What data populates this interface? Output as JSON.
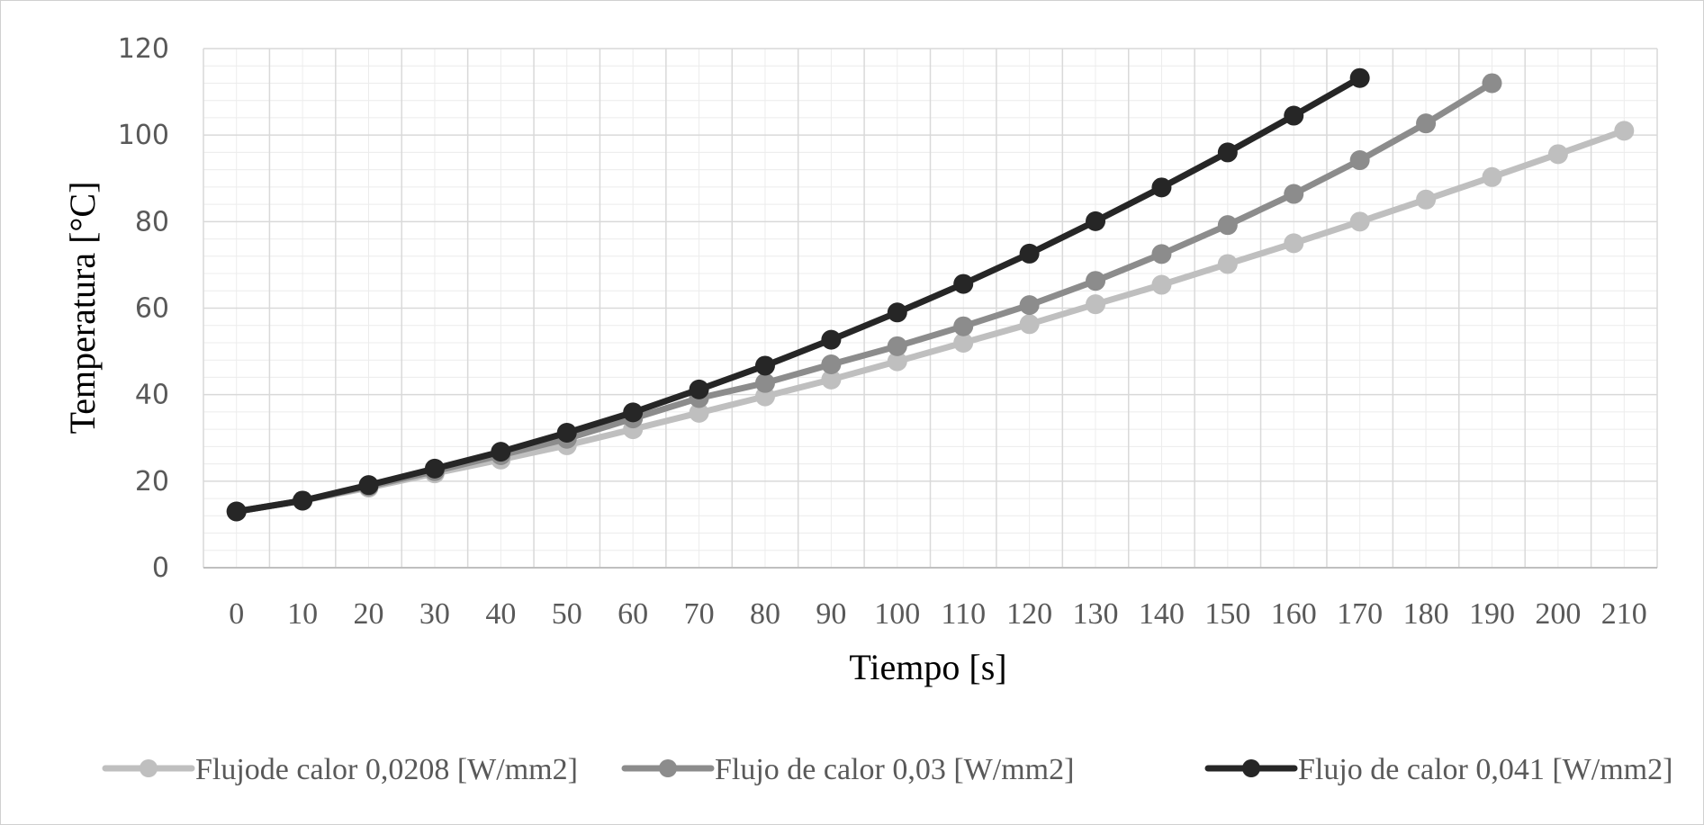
{
  "chart_data": {
    "type": "line",
    "title": "",
    "xlabel": "Tiempo [s]",
    "ylabel": "Temperatura [°C]",
    "categories": [
      0,
      10,
      20,
      30,
      40,
      50,
      60,
      70,
      80,
      90,
      100,
      110,
      120,
      130,
      140,
      150,
      160,
      170,
      180,
      190,
      200,
      210
    ],
    "ylim": [
      0,
      120
    ],
    "yticks": [
      0,
      20,
      40,
      60,
      80,
      100,
      120
    ],
    "grid": true,
    "minor_grid": true,
    "legend_position": "bottom",
    "series": [
      {
        "name": "Flujode calor 0,0208 [W/mm2]",
        "color": "#bfbfbf",
        "x": [
          0,
          10,
          20,
          30,
          40,
          50,
          60,
          70,
          80,
          90,
          100,
          110,
          120,
          130,
          140,
          150,
          160,
          170,
          180,
          190,
          200,
          210
        ],
        "values": [
          13,
          15.5,
          18.5,
          21.8,
          25,
          28.3,
          32,
          35.8,
          39.6,
          43.5,
          47.7,
          52,
          56.3,
          60.9,
          65.4,
          70.2,
          75,
          80,
          85.1,
          90.3,
          95.6,
          101
        ]
      },
      {
        "name": "Flujo de calor 0,03 [W/mm2]",
        "color": "#8c8c8c",
        "x": [
          0,
          10,
          20,
          30,
          40,
          50,
          60,
          70,
          80,
          90,
          100,
          110,
          120,
          130,
          140,
          150,
          160,
          170,
          180,
          190
        ],
        "values": [
          13,
          15.5,
          18.8,
          22.3,
          26,
          29.8,
          34.5,
          39.2,
          42.7,
          47,
          51.2,
          55.8,
          60.7,
          66.3,
          72.5,
          79.2,
          86.4,
          94.2,
          102.7,
          112
        ]
      },
      {
        "name": "Flujo de calor 0,041 [W/mm2]",
        "color": "#262626",
        "x": [
          0,
          10,
          20,
          30,
          40,
          50,
          60,
          70,
          80,
          90,
          100,
          110,
          120,
          130,
          140,
          150,
          160,
          170
        ],
        "values": [
          13,
          15.5,
          19.1,
          22.9,
          26.8,
          31.2,
          35.9,
          41.2,
          46.7,
          52.7,
          59,
          65.6,
          72.6,
          80.1,
          87.9,
          96,
          104.5,
          113.2
        ]
      }
    ]
  }
}
